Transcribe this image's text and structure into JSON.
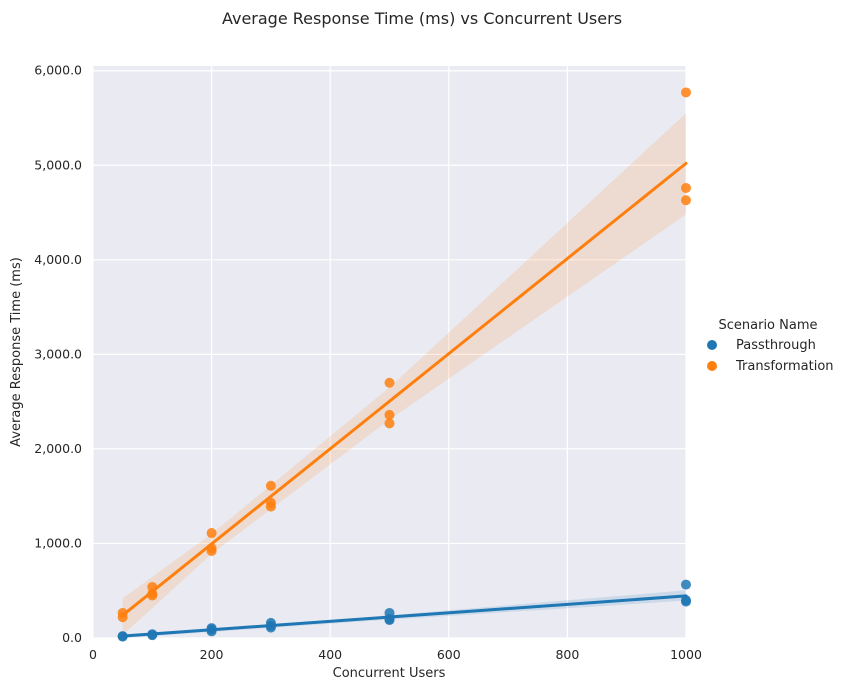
{
  "chart_data": {
    "type": "scatter",
    "title": "Average Response Time (ms) vs Concurrent Users",
    "xlabel": "Concurrent Users",
    "ylabel": "Average Response Time (ms)",
    "xlim": [
      0,
      1000
    ],
    "ylim": [
      0,
      6050
    ],
    "xticks": [
      0,
      200,
      400,
      600,
      800,
      1000
    ],
    "xtick_labels": [
      "0",
      "200",
      "400",
      "600",
      "800",
      "1000"
    ],
    "yticks": [
      0,
      1000,
      2000,
      3000,
      4000,
      5000,
      6000
    ],
    "ytick_labels": [
      "0.0",
      "1,000.0",
      "2,000.0",
      "3,000.0",
      "4,000.0",
      "5,000.0",
      "6,000.0"
    ],
    "grid": true,
    "legend": {
      "title": "Scenario Name",
      "placement": "right"
    },
    "series": [
      {
        "name": "Passthrough",
        "color": "#1f77b4",
        "points": [
          {
            "x": 50,
            "y": 15
          },
          {
            "x": 50,
            "y": 20
          },
          {
            "x": 100,
            "y": 30
          },
          {
            "x": 100,
            "y": 40
          },
          {
            "x": 200,
            "y": 70
          },
          {
            "x": 200,
            "y": 90
          },
          {
            "x": 200,
            "y": 105
          },
          {
            "x": 300,
            "y": 110
          },
          {
            "x": 300,
            "y": 130
          },
          {
            "x": 300,
            "y": 160
          },
          {
            "x": 500,
            "y": 190
          },
          {
            "x": 500,
            "y": 200
          },
          {
            "x": 500,
            "y": 265
          },
          {
            "x": 1000,
            "y": 385
          },
          {
            "x": 1000,
            "y": 400
          },
          {
            "x": 1000,
            "y": 565
          }
        ],
        "trend": {
          "x": [
            50,
            1000
          ],
          "y": [
            20,
            445
          ]
        },
        "band": {
          "x": [
            50,
            200,
            500,
            1000
          ],
          "lower": [
            0,
            65,
            195,
            395
          ],
          "upper": [
            35,
            95,
            240,
            505
          ]
        }
      },
      {
        "name": "Transformation",
        "color": "#ff7f0e",
        "points": [
          {
            "x": 50,
            "y": 220
          },
          {
            "x": 50,
            "y": 265
          },
          {
            "x": 100,
            "y": 450
          },
          {
            "x": 100,
            "y": 470
          },
          {
            "x": 100,
            "y": 540
          },
          {
            "x": 200,
            "y": 920
          },
          {
            "x": 200,
            "y": 950
          },
          {
            "x": 200,
            "y": 1110
          },
          {
            "x": 300,
            "y": 1390
          },
          {
            "x": 300,
            "y": 1430
          },
          {
            "x": 300,
            "y": 1610
          },
          {
            "x": 500,
            "y": 2270
          },
          {
            "x": 500,
            "y": 2360
          },
          {
            "x": 500,
            "y": 2700
          },
          {
            "x": 1000,
            "y": 4630
          },
          {
            "x": 1000,
            "y": 4760
          },
          {
            "x": 1000,
            "y": 5770
          }
        ],
        "trend": {
          "x": [
            50,
            1000
          ],
          "y": [
            240,
            5020
          ]
        },
        "band": {
          "x": [
            50,
            200,
            500,
            1000
          ],
          "lower": [
            30,
            890,
            2310,
            4480
          ],
          "upper": [
            420,
            1100,
            2650,
            5550
          ]
        }
      }
    ]
  }
}
